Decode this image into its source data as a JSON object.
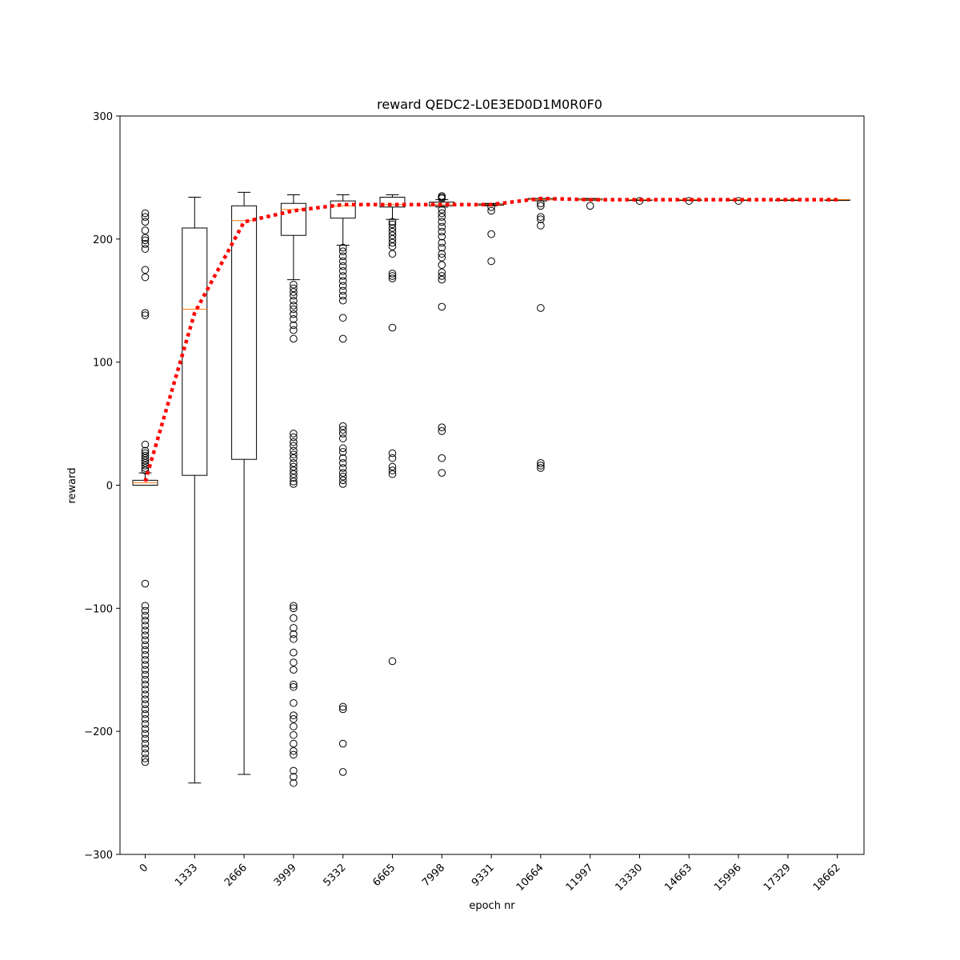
{
  "chart_data": {
    "type": "box",
    "title": "reward QEDC2-L0E3ED0D1M0R0F0",
    "xlabel": "epoch nr",
    "ylabel": "reward",
    "ylim": [
      -300,
      300
    ],
    "yticks": [
      -300,
      -200,
      -100,
      0,
      100,
      200,
      300
    ],
    "ytick_labels": [
      "−300",
      "−200",
      "−100",
      "0",
      "100",
      "200",
      "300"
    ],
    "categories": [
      "0",
      "1333",
      "2666",
      "3999",
      "5332",
      "6665",
      "7998",
      "9331",
      "10664",
      "11997",
      "13330",
      "14663",
      "15996",
      "17329",
      "18662"
    ],
    "boxes": [
      {
        "label": "0",
        "whisker_low": 0,
        "q1": 0,
        "median": 2,
        "q3": 4,
        "whisker_high": 10,
        "outliers": [
          221,
          218,
          214,
          207,
          201,
          199,
          196,
          192,
          175,
          169,
          140,
          138,
          33,
          28,
          26,
          24,
          22,
          20,
          18,
          16,
          14,
          12,
          -80,
          -98,
          -102,
          -106,
          -110,
          -114,
          -118,
          -122,
          -126,
          -130,
          -134,
          -138,
          -142,
          -146,
          -150,
          -154,
          -158,
          -162,
          -166,
          -170,
          -174,
          -178,
          -182,
          -186,
          -190,
          -194,
          -198,
          -202,
          -206,
          -210,
          -214,
          -218,
          -222,
          -225
        ]
      },
      {
        "label": "1333",
        "whisker_low": -242,
        "q1": 8,
        "median": 143,
        "q3": 209,
        "whisker_high": 234,
        "outliers": []
      },
      {
        "label": "2666",
        "whisker_low": -235,
        "q1": 21,
        "median": 215,
        "q3": 227,
        "whisker_high": 238,
        "outliers": []
      },
      {
        "label": "3999",
        "whisker_low": 167,
        "q1": 203,
        "median": 224,
        "q3": 229,
        "whisker_high": 236,
        "outliers": [
          163,
          160,
          157,
          154,
          150,
          146,
          143,
          139,
          135,
          130,
          126,
          119,
          42,
          39,
          35,
          32,
          28,
          25,
          22,
          18,
          15,
          12,
          9,
          6,
          3,
          1,
          -98,
          -100,
          -108,
          -116,
          -121,
          -125,
          -136,
          -144,
          -150,
          -162,
          -164,
          -177,
          -187,
          -190,
          -196,
          -203,
          -210,
          -216,
          -219,
          -232,
          -237,
          -242
        ]
      },
      {
        "label": "5332",
        "whisker_low": 195,
        "q1": 217,
        "median": 227,
        "q3": 231,
        "whisker_high": 236,
        "outliers": [
          193,
          190,
          186,
          182,
          178,
          174,
          170,
          166,
          162,
          158,
          154,
          150,
          136,
          119,
          48,
          45,
          42,
          38,
          30,
          27,
          22,
          18,
          14,
          10,
          7,
          4,
          1,
          -180,
          -182,
          -210,
          -233
        ]
      },
      {
        "label": "6665",
        "whisker_low": 216,
        "q1": 226,
        "median": 228,
        "q3": 234,
        "whisker_high": 236,
        "outliers": [
          214,
          212,
          209,
          206,
          203,
          200,
          197,
          194,
          188,
          172,
          170,
          168,
          128,
          26,
          22,
          15,
          12,
          9,
          -143
        ]
      },
      {
        "label": "7998",
        "whisker_low": 226,
        "q1": 227,
        "median": 228,
        "q3": 230,
        "whisker_high": 232,
        "outliers": [
          235,
          234,
          233,
          224,
          221,
          218,
          214,
          210,
          206,
          202,
          197,
          193,
          188,
          185,
          179,
          173,
          170,
          167,
          145,
          47,
          44,
          22,
          10
        ]
      },
      {
        "label": "9331",
        "whisker_low": 227,
        "q1": 227.5,
        "median": 228,
        "q3": 228.5,
        "whisker_high": 229,
        "outliers": [
          226,
          223,
          204,
          182
        ]
      },
      {
        "label": "10664",
        "whisker_low": 231,
        "q1": 232,
        "median": 232,
        "q3": 233,
        "whisker_high": 233,
        "outliers": [
          229,
          227,
          218,
          216,
          211,
          144,
          18,
          16,
          14
        ]
      },
      {
        "label": "11997",
        "whisker_low": 231.5,
        "q1": 232,
        "median": 232,
        "q3": 232.5,
        "whisker_high": 233,
        "outliers": [
          227
        ]
      },
      {
        "label": "13330",
        "whisker_low": 232,
        "q1": 232,
        "median": 232,
        "q3": 232,
        "whisker_high": 232,
        "outliers": [
          231
        ]
      },
      {
        "label": "14663",
        "whisker_low": 232,
        "q1": 232,
        "median": 232,
        "q3": 232,
        "whisker_high": 232,
        "outliers": [
          231
        ]
      },
      {
        "label": "15996",
        "whisker_low": 232,
        "q1": 232,
        "median": 232,
        "q3": 232,
        "whisker_high": 232,
        "outliers": [
          231
        ]
      },
      {
        "label": "17329",
        "whisker_low": 232,
        "q1": 232,
        "median": 232,
        "q3": 232,
        "whisker_high": 232,
        "outliers": []
      },
      {
        "label": "18662",
        "whisker_low": 232,
        "q1": 232,
        "median": 232,
        "q3": 232,
        "whisker_high": 232,
        "outliers": []
      }
    ],
    "mean_line": {
      "values": [
        3,
        140,
        214,
        223,
        228,
        228,
        228,
        228,
        233,
        232,
        232,
        232,
        232,
        232,
        232
      ],
      "color": "#ff0000",
      "style": "dotted"
    },
    "colors": {
      "box": "#000000",
      "median": "#ff7f0e",
      "mean_line": "#ff0000"
    },
    "grid": false
  }
}
